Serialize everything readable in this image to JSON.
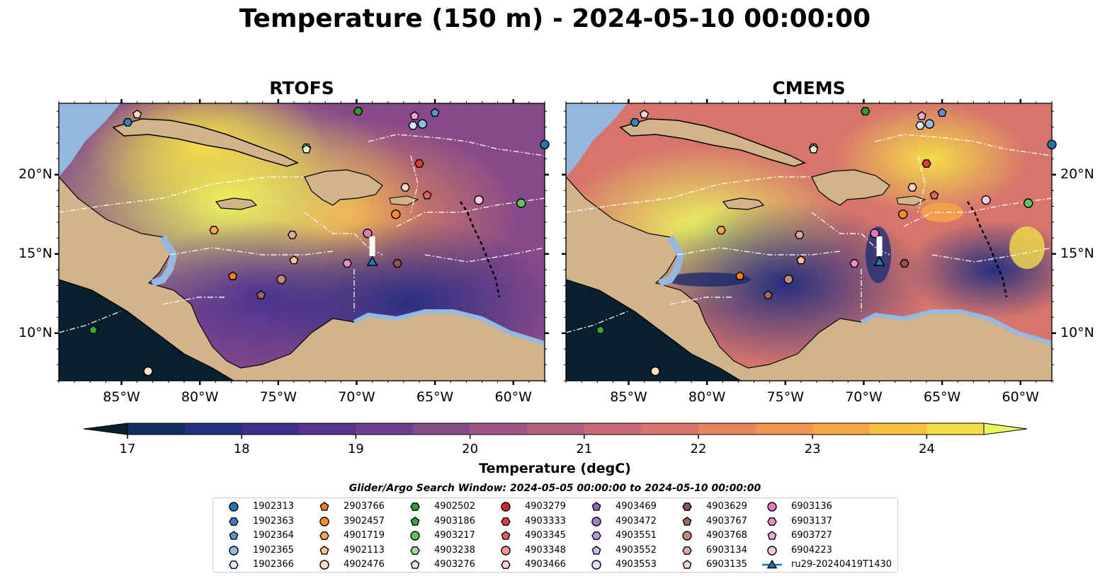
{
  "title": "Temperature (150 m) - 2024-05-10 00:00:00",
  "panels": [
    {
      "name": "rtofs",
      "title": "RTOFS"
    },
    {
      "name": "cmems",
      "title": "CMEMS"
    }
  ],
  "axes": {
    "lon_ticks": [
      "85°W",
      "80°W",
      "75°W",
      "70°W",
      "65°W",
      "60°W"
    ],
    "lat_ticks": [
      "20°N",
      "15°N",
      "10°N"
    ],
    "lon_range": [
      -89,
      -58
    ],
    "lat_range": [
      7,
      24.5
    ]
  },
  "colorbar": {
    "label": "Temperature (degC)",
    "ticks": [
      "17",
      "18",
      "19",
      "20",
      "21",
      "22",
      "23",
      "24"
    ],
    "range": [
      16.75,
      24.5
    ],
    "colors": [
      "#08202e",
      "#0e2e5c",
      "#252f80",
      "#3d2f8c",
      "#553590",
      "#6d3f8e",
      "#864a8a",
      "#9e5585",
      "#b35f7f",
      "#c66a77",
      "#d7756c",
      "#e68560",
      "#f29352",
      "#f9a745",
      "#fbc23e",
      "#f4dd48",
      "#e9f55f"
    ]
  },
  "search_window": "Glider/Argo Search Window: 2024-05-05 00:00:00 to 2024-05-10 00:00:00",
  "legend": [
    {
      "label": "1902313",
      "marker": "circle",
      "color": "#1f77b4"
    },
    {
      "label": "1902363",
      "marker": "hexagon",
      "color": "#3a82bf"
    },
    {
      "label": "1902364",
      "marker": "pentagon",
      "color": "#5499cc"
    },
    {
      "label": "1902365",
      "marker": "circle",
      "color": "#8fbde3"
    },
    {
      "label": "1902366",
      "marker": "hexagon",
      "color": "#d6e9f8"
    },
    {
      "label": "2903766",
      "marker": "pentagon",
      "color": "#ff7f0e"
    },
    {
      "label": "3902457",
      "marker": "circle",
      "color": "#ff8c25"
    },
    {
      "label": "4901719",
      "marker": "hexagon",
      "color": "#ffa552"
    },
    {
      "label": "4902113",
      "marker": "pentagon",
      "color": "#ffc28a"
    },
    {
      "label": "4902476",
      "marker": "circle",
      "color": "#ffe1c2"
    },
    {
      "label": "4902502",
      "marker": "hexagon",
      "color": "#2ca02c"
    },
    {
      "label": "4903186",
      "marker": "pentagon",
      "color": "#34a834"
    },
    {
      "label": "4903217",
      "marker": "circle",
      "color": "#5cc45c"
    },
    {
      "label": "4903238",
      "marker": "hexagon",
      "color": "#97e097"
    },
    {
      "label": "4903276",
      "marker": "pentagon",
      "color": "#d5f7d0"
    },
    {
      "label": "4903279",
      "marker": "circle",
      "color": "#d62728"
    },
    {
      "label": "4903333",
      "marker": "hexagon",
      "color": "#e03c3c"
    },
    {
      "label": "4903345",
      "marker": "pentagon",
      "color": "#e86060"
    },
    {
      "label": "4903348",
      "marker": "circle",
      "color": "#f29595"
    },
    {
      "label": "4903466",
      "marker": "hexagon",
      "color": "#fcd2d0"
    },
    {
      "label": "4903469",
      "marker": "pentagon",
      "color": "#9467bd"
    },
    {
      "label": "4903472",
      "marker": "circle",
      "color": "#a27cca"
    },
    {
      "label": "4903551",
      "marker": "hexagon",
      "color": "#b898dc"
    },
    {
      "label": "4903552",
      "marker": "pentagon",
      "color": "#d1b8ef"
    },
    {
      "label": "4903553",
      "marker": "circle",
      "color": "#eadcfd"
    },
    {
      "label": "4903629",
      "marker": "hexagon",
      "color": "#8c564b"
    },
    {
      "label": "4903767",
      "marker": "pentagon",
      "color": "#a1695c"
    },
    {
      "label": "4903768",
      "marker": "circle",
      "color": "#c08a7c"
    },
    {
      "label": "6903134",
      "marker": "hexagon",
      "color": "#dcaaa0"
    },
    {
      "label": "6903135",
      "marker": "pentagon",
      "color": "#f7d7cc"
    },
    {
      "label": "6903136",
      "marker": "circle",
      "color": "#e377c2"
    },
    {
      "label": "6903137",
      "marker": "hexagon",
      "color": "#e88ccb"
    },
    {
      "label": "6903727",
      "marker": "pentagon",
      "color": "#f0a5d8"
    },
    {
      "label": "6904223",
      "marker": "circle",
      "color": "#f8c8e8"
    },
    {
      "label": "ru29-20240419T1430",
      "marker": "triangle-line",
      "color": "#1f77b4"
    }
  ],
  "markers": [
    {
      "id": "1902313",
      "lon": -58.0,
      "lat": 21.9
    },
    {
      "id": "1902363",
      "lon": -84.6,
      "lat": 23.3
    },
    {
      "id": "1902364",
      "lon": -65.0,
      "lat": 23.9
    },
    {
      "id": "1902365",
      "lon": -65.8,
      "lat": 23.2
    },
    {
      "id": "1902366",
      "lon": -66.4,
      "lat": 23.1
    },
    {
      "id": "2903766",
      "lon": -77.9,
      "lat": 13.6
    },
    {
      "id": "3902457",
      "lon": -67.5,
      "lat": 17.5
    },
    {
      "id": "4901719",
      "lon": -79.1,
      "lat": 16.5
    },
    {
      "id": "4902113",
      "lon": -74.0,
      "lat": 14.6
    },
    {
      "id": "4902476",
      "lon": -83.3,
      "lat": 7.6
    },
    {
      "id": "4902502",
      "lon": -69.9,
      "lat": 24.0
    },
    {
      "id": "4903186",
      "lon": -86.8,
      "lat": 10.2
    },
    {
      "id": "4903217",
      "lon": -59.5,
      "lat": 18.2
    },
    {
      "id": "4903238",
      "lon": -73.2,
      "lat": 21.7
    },
    {
      "id": "4903276",
      "lon": -73.2,
      "lat": 21.6
    },
    {
      "id": "4903333",
      "lon": -66.0,
      "lat": 20.7
    },
    {
      "id": "4903345",
      "lon": -65.5,
      "lat": 18.7
    },
    {
      "id": "4903466",
      "lon": -66.9,
      "lat": 19.2
    },
    {
      "id": "4903629",
      "lon": -67.4,
      "lat": 14.4
    },
    {
      "id": "4903767",
      "lon": -76.1,
      "lat": 12.4
    },
    {
      "id": "4903768",
      "lon": -74.8,
      "lat": 13.4
    },
    {
      "id": "6903134",
      "lon": -74.1,
      "lat": 16.2
    },
    {
      "id": "6903135",
      "lon": -84.0,
      "lat": 23.8
    },
    {
      "id": "6903136",
      "lon": -69.3,
      "lat": 16.3
    },
    {
      "id": "6903137",
      "lon": -70.6,
      "lat": 14.4
    },
    {
      "id": "6903727",
      "lon": -66.3,
      "lat": 23.7
    },
    {
      "id": "6904223",
      "lon": -62.2,
      "lat": 18.4
    }
  ],
  "glider": {
    "id": "ru29-20240419T1430",
    "lon": -69.0,
    "lat": 14.5
  }
}
